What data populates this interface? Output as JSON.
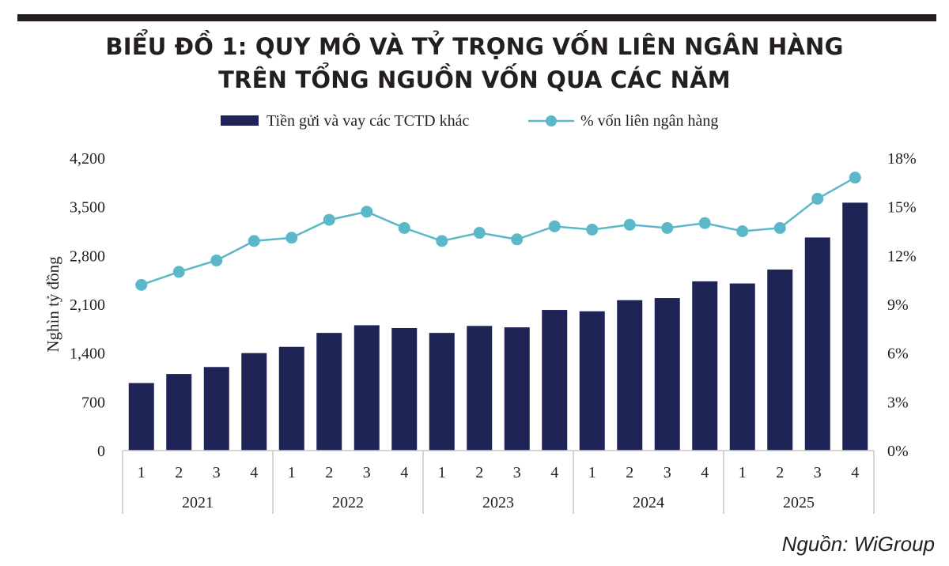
{
  "header": {
    "title_line1": "BIỂU ĐỒ 1: QUY MÔ VÀ TỶ TRỌNG VỐN LIÊN NGÂN HÀNG",
    "title_line2": "TRÊN TỔNG NGUỒN VỐN QUA CÁC NĂM"
  },
  "footer": {
    "source": "Nguồn: WiGroup"
  },
  "chart_data": {
    "type": "bar",
    "legend_position": "top-center",
    "grid": false,
    "ylabel": "Nghìn tỷ đồng",
    "ylim": [
      0,
      4200
    ],
    "y_ticks": [
      "0",
      "700",
      "1,400",
      "2,100",
      "2,800",
      "3,500",
      "4,200"
    ],
    "y_tick_values": [
      0,
      700,
      1400,
      2100,
      2800,
      3500,
      4200
    ],
    "y2lim": [
      0,
      18
    ],
    "y2_ticks": [
      "0%",
      "3%",
      "6%",
      "9%",
      "12%",
      "15%",
      "18%"
    ],
    "y2_tick_values": [
      0,
      3,
      6,
      9,
      12,
      15,
      18
    ],
    "categories": [
      "1",
      "2",
      "3",
      "4",
      "1",
      "2",
      "3",
      "4",
      "1",
      "2",
      "3",
      "4",
      "1",
      "2",
      "3",
      "4",
      "1",
      "2",
      "3",
      "4"
    ],
    "groups": [
      "2021",
      "2022",
      "2023",
      "2024",
      "2025"
    ],
    "series": [
      {
        "name": "Tiền gửi và vay các TCTD khác",
        "type": "bar",
        "axis": "left",
        "color": "#1f2456",
        "values": [
          970,
          1100,
          1200,
          1400,
          1490,
          1690,
          1800,
          1760,
          1690,
          1790,
          1770,
          2020,
          2000,
          2160,
          2190,
          2430,
          2400,
          2600,
          3060,
          3560
        ]
      },
      {
        "name": "% vốn liên ngân hàng",
        "type": "line",
        "axis": "right",
        "color": "#5bb8c8",
        "values": [
          10.2,
          11.0,
          11.7,
          12.9,
          13.1,
          14.2,
          14.7,
          13.7,
          12.9,
          13.4,
          13.0,
          13.8,
          13.6,
          13.9,
          13.7,
          14.0,
          13.5,
          13.7,
          15.5,
          16.8
        ]
      }
    ]
  }
}
